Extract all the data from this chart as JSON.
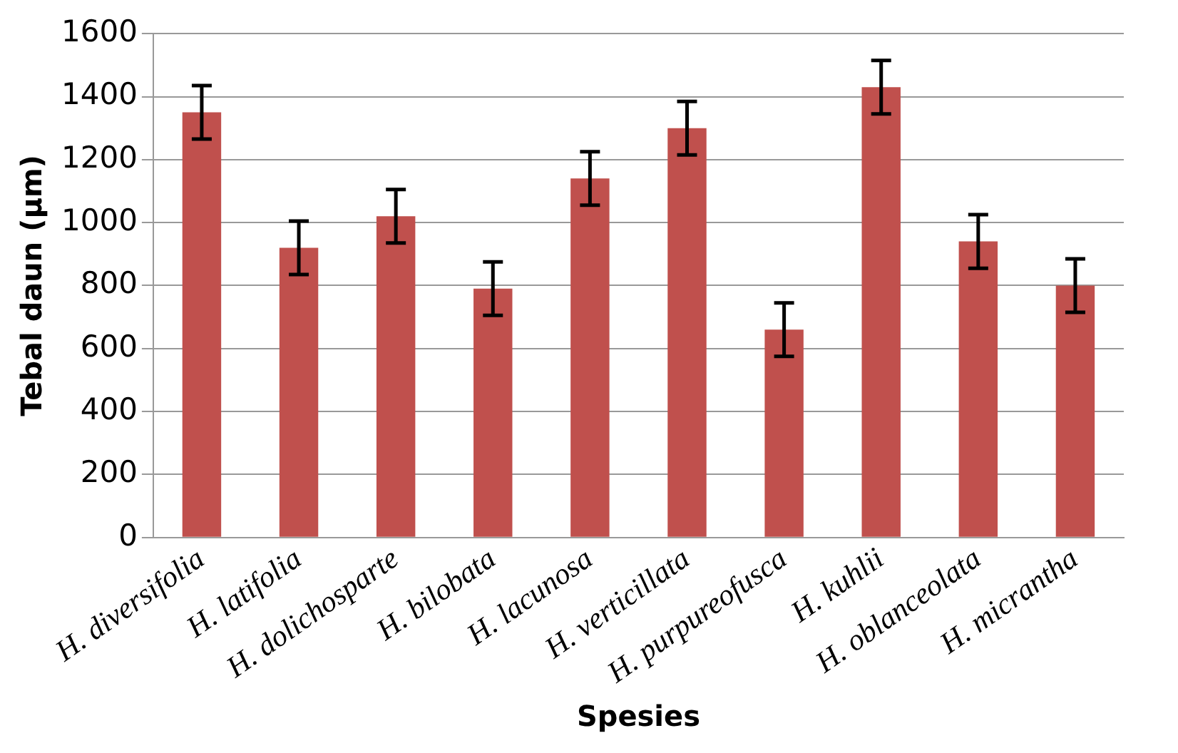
{
  "chart_data": {
    "type": "bar",
    "xlabel": "Spesies",
    "ylabel": "Tebal daun (µm)",
    "categories": [
      "H. diversifolia",
      "H. latifolia",
      "H. dolichosparte",
      "H. bilobata",
      "H. lacunosa",
      "H. verticillata",
      "H. purpureofusca",
      "H. kuhlii",
      "H. oblanceolata",
      "H. micrantha"
    ],
    "values": [
      1350,
      920,
      1020,
      790,
      1140,
      1300,
      660,
      1430,
      940,
      800
    ],
    "errors": [
      85,
      85,
      85,
      85,
      85,
      85,
      85,
      85,
      85,
      85
    ],
    "color": "#c0504d",
    "ylim": [
      0,
      1600
    ],
    "yticks": [
      0,
      200,
      400,
      600,
      800,
      1000,
      1200,
      1400,
      1600
    ],
    "grid": "y",
    "legend": false
  }
}
